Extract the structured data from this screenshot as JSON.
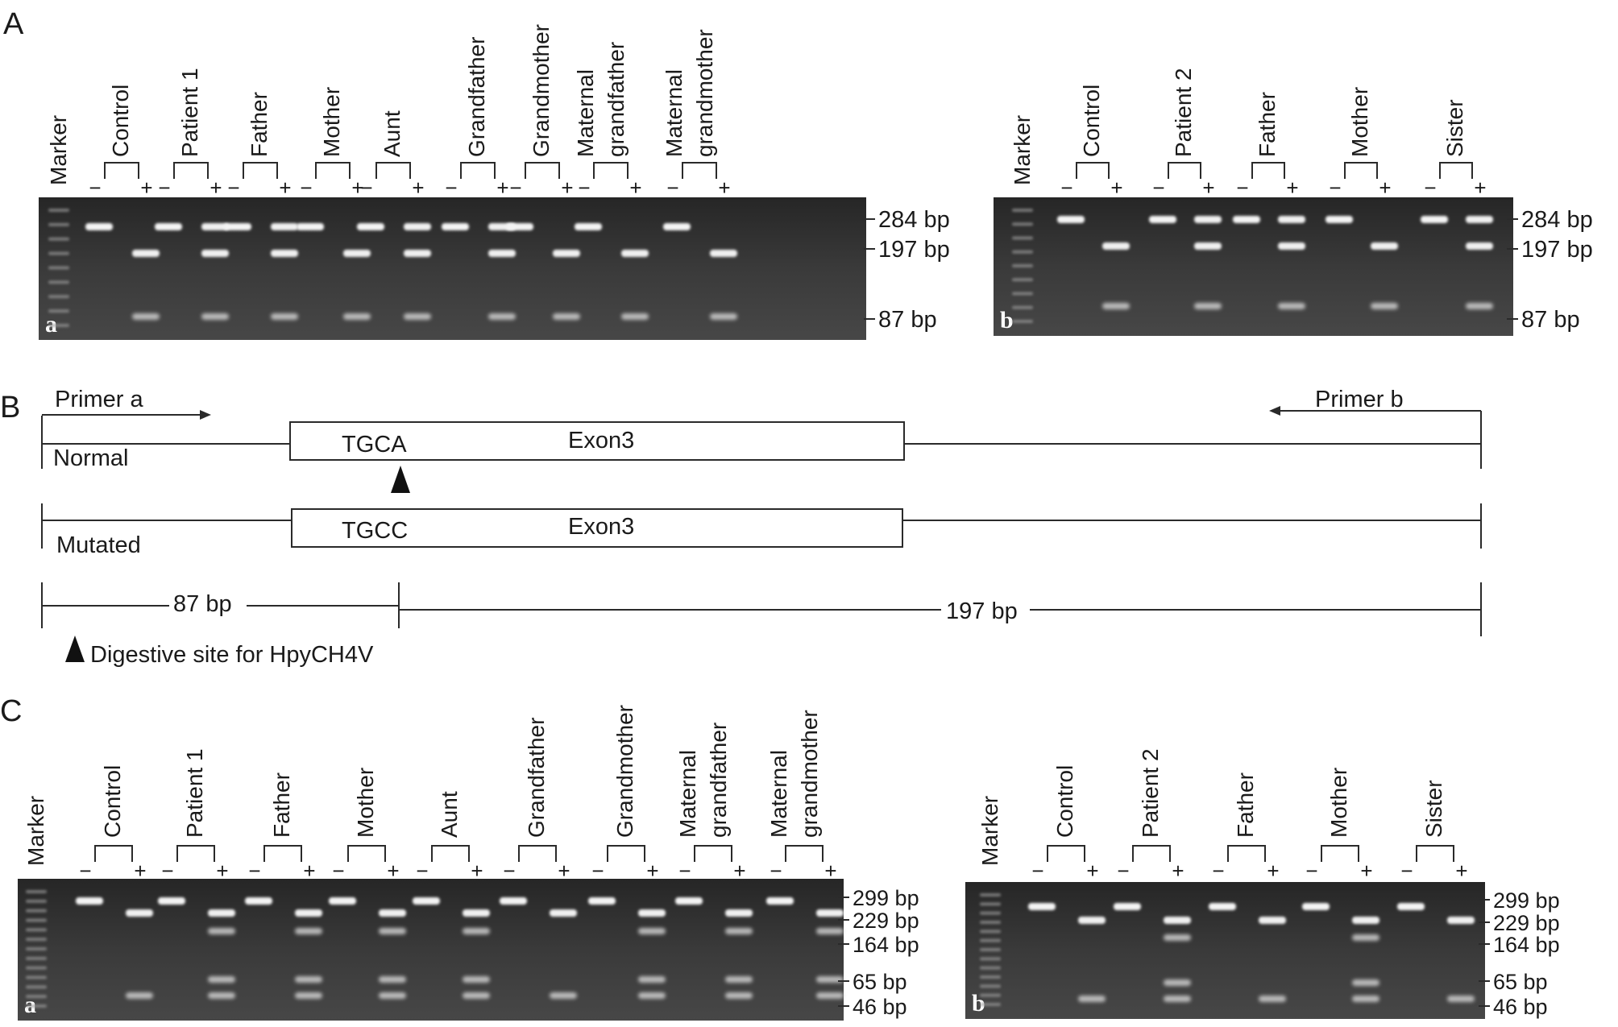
{
  "panel_labels": {
    "A": "A",
    "B": "B",
    "C": "C"
  },
  "gels": {
    "Aa": {
      "corner_label": "a",
      "lanes": [
        "Marker",
        "Control",
        "Patient 1",
        "Father",
        "Mother",
        "Aunt",
        "Grandfather",
        "Grandmother",
        [
          "Maternal",
          "grandfather"
        ],
        [
          "Maternal",
          "grandmother"
        ]
      ],
      "minus": "−",
      "plus": "+",
      "bp_labels": [
        "284 bp",
        "197 bp",
        "87 bp"
      ],
      "undigested_bp": 284,
      "digested_bands": [
        {
          "lane": "Control",
          "bands": [
            197,
            87
          ]
        },
        {
          "lane": "Patient 1",
          "bands": [
            284,
            197,
            87
          ]
        },
        {
          "lane": "Father",
          "bands": [
            284,
            197,
            87
          ]
        },
        {
          "lane": "Mother",
          "bands": [
            197,
            87
          ]
        },
        {
          "lane": "Aunt",
          "bands": [
            284,
            197,
            87
          ]
        },
        {
          "lane": "Grandfather",
          "bands": [
            284,
            197,
            87
          ]
        },
        {
          "lane": "Grandmother",
          "bands": [
            197,
            87
          ]
        },
        {
          "lane": "Maternal grandfather",
          "bands": [
            197,
            87
          ]
        },
        {
          "lane": "Maternal grandmother",
          "bands": [
            197,
            87
          ]
        }
      ]
    },
    "Ab": {
      "corner_label": "b",
      "lanes": [
        "Marker",
        "Control",
        "Patient 2",
        "Father",
        "Mother",
        "Sister"
      ],
      "minus": "−",
      "plus": "+",
      "bp_labels": [
        "284 bp",
        "197 bp",
        "87 bp"
      ],
      "undigested_bp": 284,
      "digested_bands": [
        {
          "lane": "Control",
          "bands": [
            197,
            87
          ]
        },
        {
          "lane": "Patient 2",
          "bands": [
            284,
            197,
            87
          ]
        },
        {
          "lane": "Father",
          "bands": [
            284,
            197,
            87
          ]
        },
        {
          "lane": "Mother",
          "bands": [
            197,
            87
          ]
        },
        {
          "lane": "Sister",
          "bands": [
            284,
            197,
            87
          ]
        }
      ]
    },
    "Ca": {
      "corner_label": "a",
      "lanes": [
        "Marker",
        "Control",
        "Patient 1",
        "Father",
        "Mother",
        "Aunt",
        "Grandfather",
        "Grandmother",
        [
          "Maternal",
          "grandfather"
        ],
        [
          "Maternal",
          "grandmother"
        ]
      ],
      "minus": "−",
      "plus": "+",
      "bp_labels": [
        "299 bp",
        "229 bp",
        "164 bp",
        "65 bp",
        "46 bp"
      ],
      "undigested_bp": 299,
      "digested_bands": [
        {
          "lane": "Control",
          "bands": [
            229,
            46
          ]
        },
        {
          "lane": "Patient 1",
          "bands": [
            229,
            164,
            65,
            46
          ]
        },
        {
          "lane": "Father",
          "bands": [
            229,
            164,
            65,
            46
          ]
        },
        {
          "lane": "Mother",
          "bands": [
            229,
            164,
            65,
            46
          ]
        },
        {
          "lane": "Aunt",
          "bands": [
            229,
            164,
            65,
            46
          ]
        },
        {
          "lane": "Grandfather",
          "bands": [
            229,
            46
          ]
        },
        {
          "lane": "Grandmother",
          "bands": [
            229,
            164,
            65,
            46
          ]
        },
        {
          "lane": "Maternal grandfather",
          "bands": [
            229,
            164,
            65,
            46
          ]
        },
        {
          "lane": "Maternal grandmother",
          "bands": [
            229,
            164,
            65,
            46
          ]
        }
      ]
    },
    "Cb": {
      "corner_label": "b",
      "lanes": [
        "Marker",
        "Control",
        "Patient 2",
        "Father",
        "Mother",
        "Sister"
      ],
      "minus": "−",
      "plus": "+",
      "bp_labels": [
        "299 bp",
        "229 bp",
        "164 bp",
        "65 bp",
        "46 bp"
      ],
      "undigested_bp": 299,
      "digested_bands": [
        {
          "lane": "Control",
          "bands": [
            229,
            46
          ]
        },
        {
          "lane": "Patient 2",
          "bands": [
            229,
            164,
            65,
            46
          ]
        },
        {
          "lane": "Father",
          "bands": [
            229,
            46
          ]
        },
        {
          "lane": "Mother",
          "bands": [
            229,
            164,
            65,
            46
          ]
        },
        {
          "lane": "Sister",
          "bands": [
            229,
            46
          ]
        }
      ]
    }
  },
  "diagram": {
    "primer_a": "Primer a",
    "primer_b": "Primer b",
    "normal_label": "Normal",
    "mutated_label": "Mutated",
    "normal_motif": "TGCA",
    "mutated_motif": "TGCC",
    "exon_label": "Exon3",
    "fragment_left": "87 bp",
    "fragment_right": "197 bp",
    "legend": "Digestive site for HpyCH4V"
  }
}
